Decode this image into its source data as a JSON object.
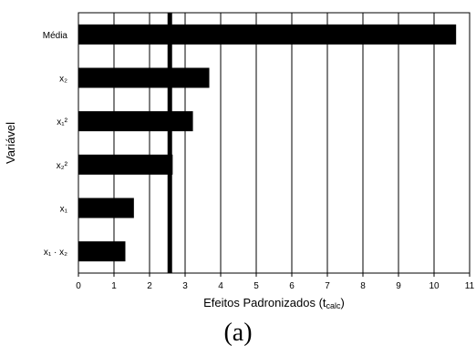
{
  "chart_data": {
    "type": "bar",
    "orientation": "horizontal",
    "categories": [
      "Média",
      "x₂",
      "x₁²",
      "x₂²",
      "x₁",
      "x₁ · x₂"
    ],
    "values": [
      10.62,
      3.68,
      3.22,
      2.65,
      1.56,
      1.32
    ],
    "xlim": [
      0,
      11
    ],
    "xticks": [
      "0",
      "1",
      "2",
      "3",
      "4",
      "5",
      "6",
      "7",
      "8",
      "9",
      "10",
      "11"
    ],
    "xlabel": "Efeitos Padronizados (t",
    "xlabel_sub": "calc",
    "xlabel_end": ")",
    "ylabel": "Variável",
    "reference_line": 2.57,
    "grid": "vertical",
    "bar_color": "#000000",
    "caption": "(a)"
  }
}
